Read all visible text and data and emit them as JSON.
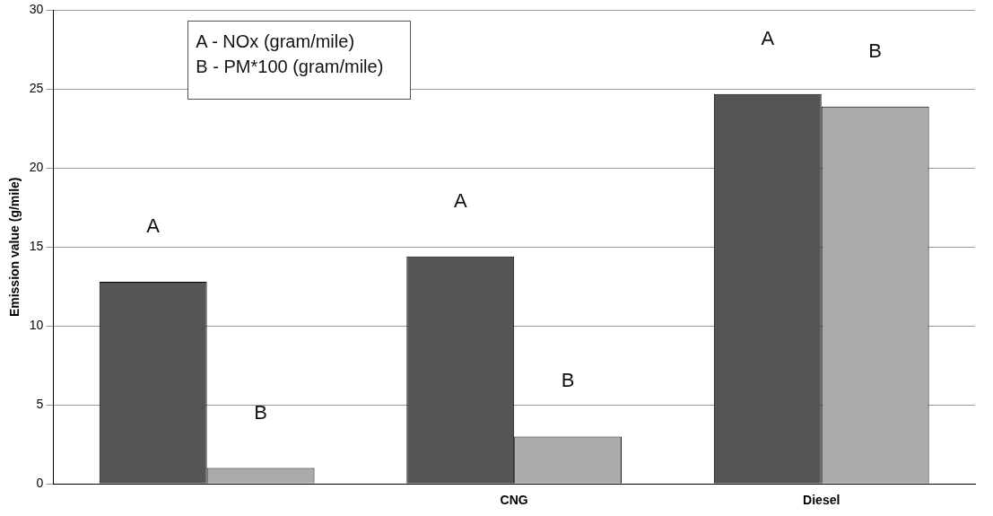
{
  "chart_data": {
    "type": "bar",
    "ylabel": "Emission value (g/mile)",
    "categories": [
      null,
      "CNG",
      "Diesel"
    ],
    "series": [
      {
        "name": "A",
        "color": "#555555",
        "values": [
          12.8,
          14.4,
          24.7
        ]
      },
      {
        "name": "B",
        "color": "#aaaaaa",
        "values": [
          1.0,
          3.0,
          23.9
        ]
      }
    ],
    "annotations": [
      "A - NOx (gram/mile)",
      "B - PM*100 (gram/mile)"
    ],
    "ylim": [
      0,
      30
    ],
    "yticks": [
      0,
      5,
      10,
      15,
      20,
      25,
      30
    ],
    "grid": "y",
    "legend": false
  }
}
